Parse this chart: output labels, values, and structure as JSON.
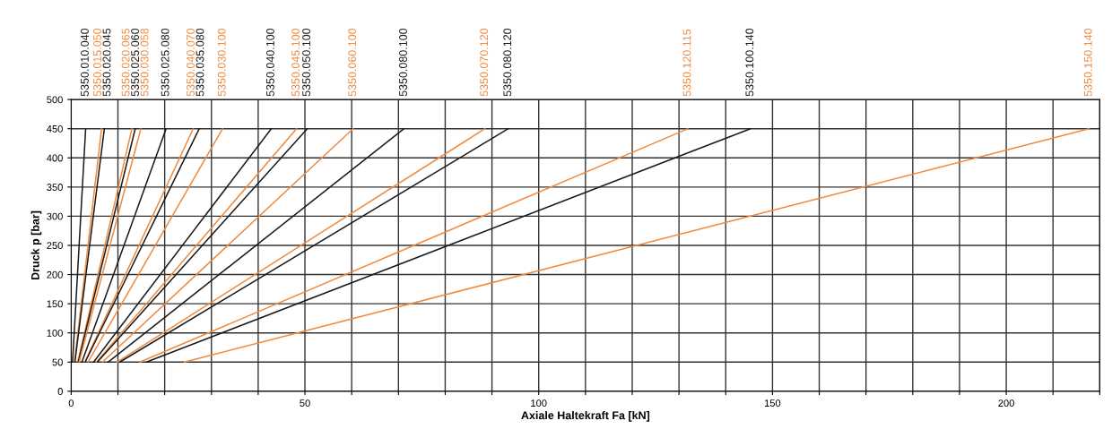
{
  "chart_data": {
    "type": "line",
    "xlabel": "Axiale Haltekraft Fa [kN]",
    "ylabel": "Druck p [bar]",
    "xlim": [
      0,
      220
    ],
    "ylim": [
      0,
      500
    ],
    "xticks": [
      0,
      {
        "value": 10,
        "label": null
      },
      {
        "value": 20,
        "label": null
      },
      {
        "value": 30,
        "label": null
      },
      {
        "value": 40,
        "label": null
      },
      50,
      {
        "value": 60,
        "label": null
      },
      {
        "value": 70,
        "label": null
      },
      {
        "value": 80,
        "label": null
      },
      {
        "value": 90,
        "label": null
      },
      100,
      {
        "value": 110,
        "label": null
      },
      {
        "value": 120,
        "label": null
      },
      {
        "value": 130,
        "label": null
      },
      {
        "value": 140,
        "label": null
      },
      150,
      {
        "value": 160,
        "label": null
      },
      {
        "value": 170,
        "label": null
      },
      {
        "value": 180,
        "label": null
      },
      {
        "value": 190,
        "label": null
      },
      200,
      {
        "value": 210,
        "label": null
      },
      {
        "value": 220,
        "label": null
      }
    ],
    "yticks": [
      0,
      50,
      100,
      150,
      200,
      250,
      300,
      350,
      400,
      450,
      500
    ],
    "grid": true,
    "legend": false,
    "marker": "none",
    "line_style": "solid",
    "series": [
      {
        "name": "5350.010.040",
        "color": "#1a1a1a",
        "x": [
          0.3,
          3.1
        ],
        "values": [
          50,
          450
        ]
      },
      {
        "name": "5350.015.050",
        "color": "#f08a3c",
        "x": [
          0.7,
          6.5
        ],
        "values": [
          50,
          450
        ]
      },
      {
        "name": "5350.020.045",
        "color": "#1a1a1a",
        "x": [
          0.8,
          7.1
        ],
        "values": [
          50,
          450
        ]
      },
      {
        "name": "5350.020.065",
        "color": "#f08a3c",
        "x": [
          1.4,
          13.0
        ],
        "values": [
          50,
          450
        ]
      },
      {
        "name": "5350.025.060",
        "color": "#1a1a1a",
        "x": [
          1.5,
          13.7
        ],
        "values": [
          50,
          450
        ]
      },
      {
        "name": "5350.030.058",
        "color": "#f08a3c",
        "x": [
          1.7,
          14.9
        ],
        "values": [
          50,
          450
        ]
      },
      {
        "name": "5350.025.080",
        "color": "#1a1a1a",
        "x": [
          2.3,
          20.3
        ],
        "values": [
          50,
          450
        ]
      },
      {
        "name": "5350.040.070",
        "color": "#f08a3c",
        "x": [
          2.9,
          26.1
        ],
        "values": [
          50,
          450
        ]
      },
      {
        "name": "5350.035.080",
        "color": "#1a1a1a",
        "x": [
          3.0,
          27.4
        ],
        "values": [
          50,
          450
        ]
      },
      {
        "name": "5350.030.100",
        "color": "#f08a3c",
        "x": [
          3.6,
          32.4
        ],
        "values": [
          50,
          450
        ]
      },
      {
        "name": "5350.040.100",
        "color": "#1a1a1a",
        "x": [
          4.8,
          42.8
        ],
        "values": [
          50,
          450
        ]
      },
      {
        "name": "5350.045.100",
        "color": "#f08a3c",
        "x": [
          5.4,
          48.2
        ],
        "values": [
          50,
          450
        ]
      },
      {
        "name": "5350.050.100",
        "color": "#1a1a1a",
        "x": [
          5.6,
          50.5
        ],
        "values": [
          50,
          450
        ]
      },
      {
        "name": "5350.060.100",
        "color": "#f08a3c",
        "x": [
          6.7,
          60.3
        ],
        "values": [
          50,
          450
        ]
      },
      {
        "name": "5350.080.100",
        "color": "#1a1a1a",
        "x": [
          7.9,
          71.2
        ],
        "values": [
          50,
          450
        ]
      },
      {
        "name": "5350.070.120",
        "color": "#f08a3c",
        "x": [
          9.8,
          88.5
        ],
        "values": [
          50,
          450
        ]
      },
      {
        "name": "5350.080.120",
        "color": "#1a1a1a",
        "x": [
          10.4,
          93.5
        ],
        "values": [
          50,
          450
        ]
      },
      {
        "name": "5350.120.115",
        "color": "#f08a3c",
        "x": [
          14.7,
          131.9
        ],
        "values": [
          50,
          450
        ]
      },
      {
        "name": "5350.100.140",
        "color": "#1a1a1a",
        "x": [
          16.1,
          145.3
        ],
        "values": [
          50,
          450
        ]
      },
      {
        "name": "5350.150.140",
        "color": "#f08a3c",
        "x": [
          24.2,
          217.7
        ],
        "values": [
          50,
          450
        ]
      }
    ]
  }
}
